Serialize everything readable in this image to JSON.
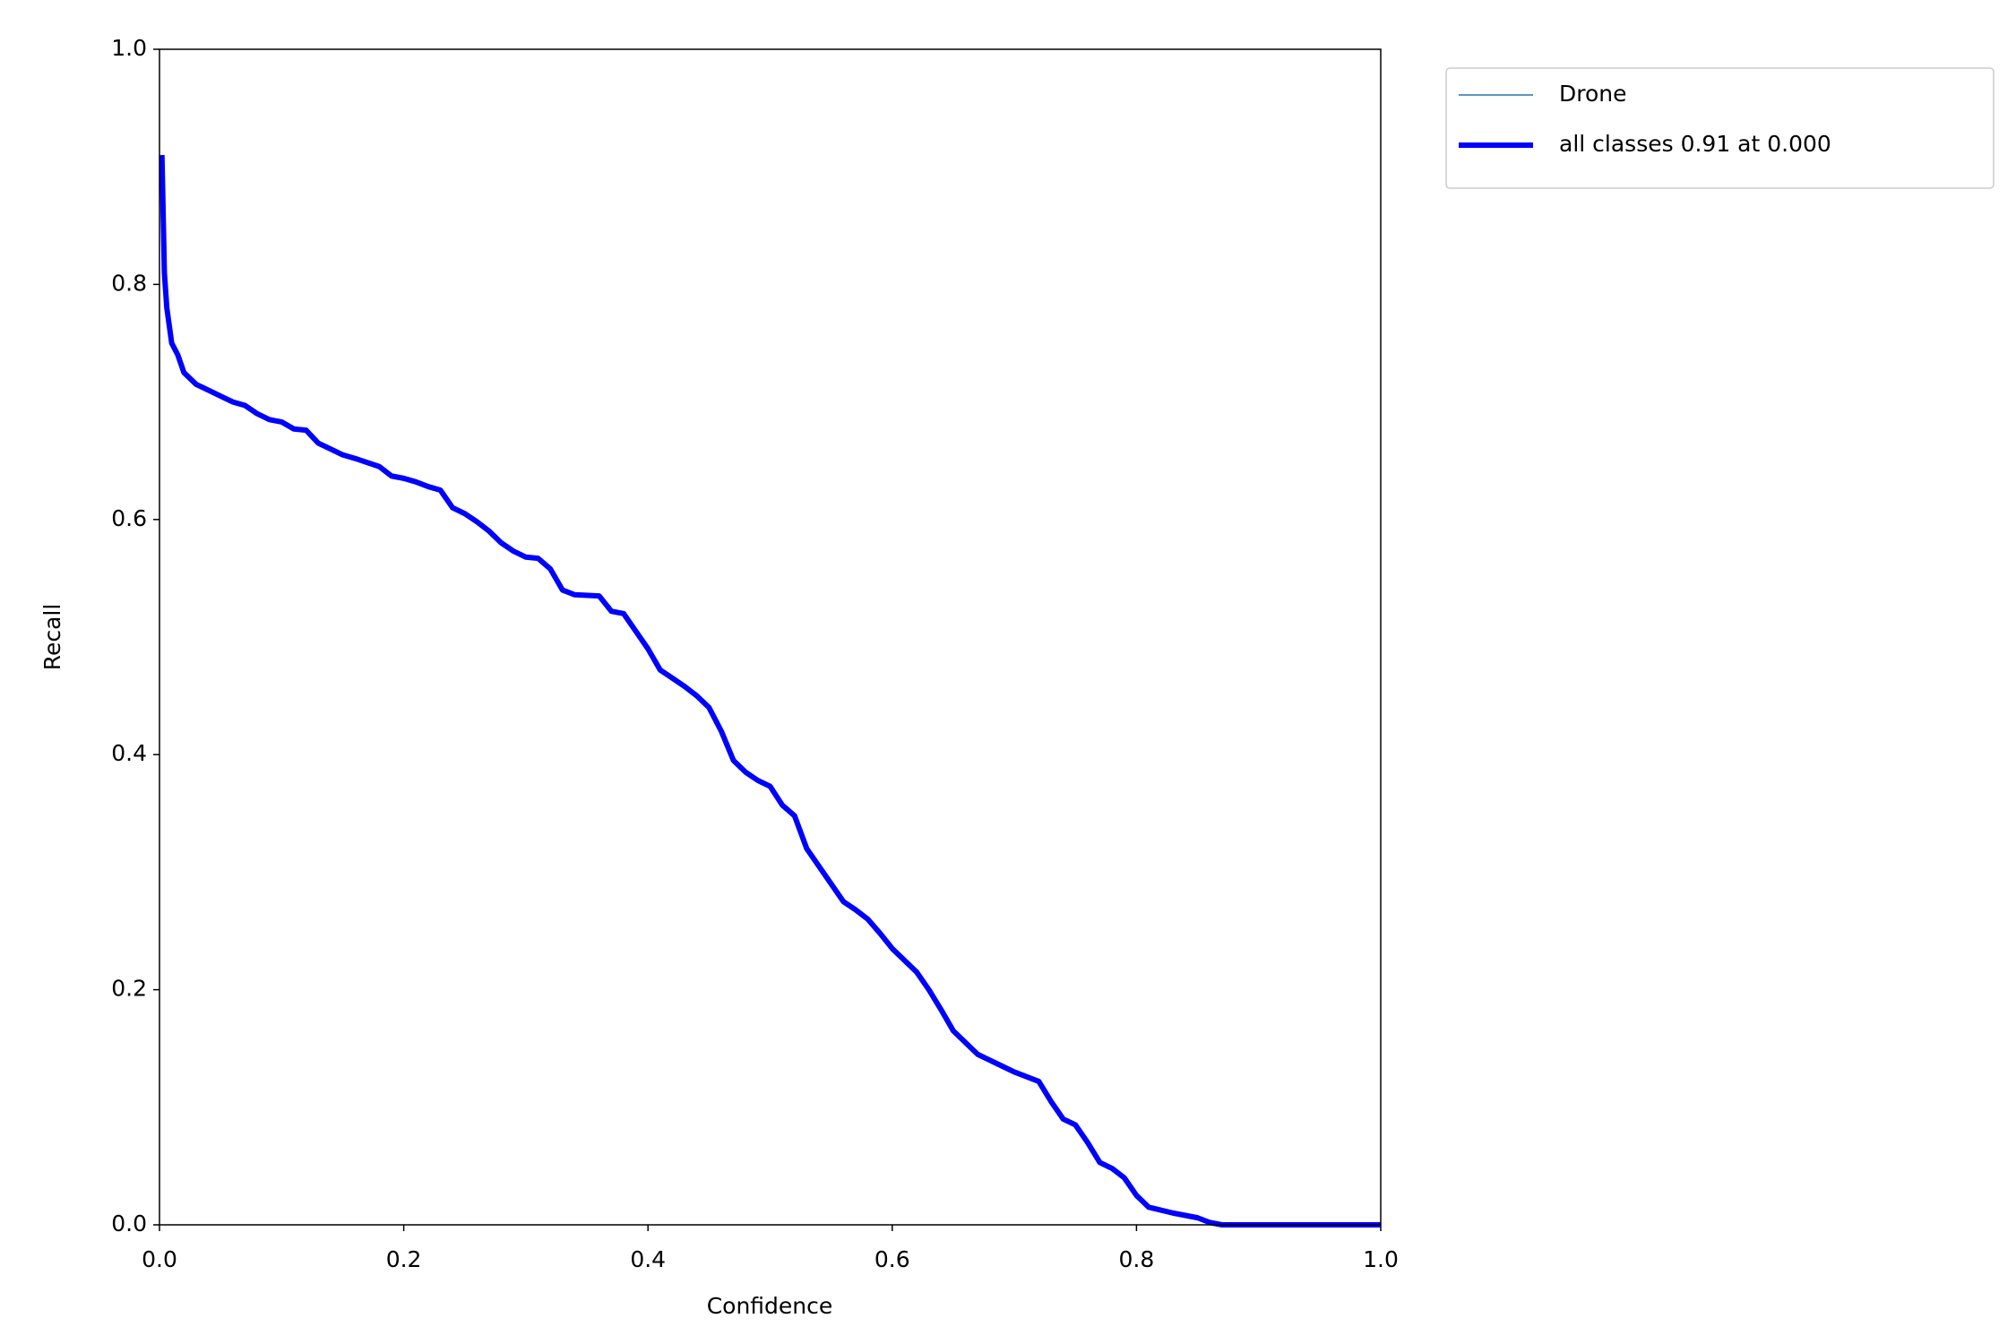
{
  "chart_data": {
    "type": "line",
    "xlabel": "Confidence",
    "ylabel": "Recall",
    "x": [
      0.002,
      0.004,
      0.006,
      0.01,
      0.015,
      0.02,
      0.03,
      0.04,
      0.05,
      0.06,
      0.07,
      0.08,
      0.09,
      0.1,
      0.11,
      0.12,
      0.13,
      0.14,
      0.15,
      0.16,
      0.18,
      0.19,
      0.2,
      0.21,
      0.22,
      0.23,
      0.24,
      0.25,
      0.26,
      0.27,
      0.28,
      0.29,
      0.3,
      0.31,
      0.32,
      0.33,
      0.34,
      0.36,
      0.37,
      0.38,
      0.39,
      0.4,
      0.41,
      0.42,
      0.43,
      0.44,
      0.45,
      0.46,
      0.47,
      0.48,
      0.49,
      0.5,
      0.51,
      0.52,
      0.53,
      0.54,
      0.55,
      0.56,
      0.57,
      0.58,
      0.59,
      0.6,
      0.61,
      0.62,
      0.63,
      0.64,
      0.65,
      0.66,
      0.67,
      0.68,
      0.69,
      0.7,
      0.71,
      0.72,
      0.73,
      0.74,
      0.75,
      0.76,
      0.77,
      0.78,
      0.79,
      0.8,
      0.81,
      0.83,
      0.85,
      0.86,
      0.87,
      1.0
    ],
    "series": [
      {
        "name": "Drone",
        "color": "#1f77b4",
        "width": 1.5,
        "values": [
          0.91,
          0.81,
          0.78,
          0.75,
          0.74,
          0.725,
          0.715,
          0.71,
          0.705,
          0.7,
          0.697,
          0.69,
          0.685,
          0.683,
          0.677,
          0.676,
          0.665,
          0.66,
          0.655,
          0.652,
          0.645,
          0.637,
          0.635,
          0.632,
          0.628,
          0.625,
          0.61,
          0.605,
          0.598,
          0.59,
          0.58,
          0.573,
          0.568,
          0.567,
          0.558,
          0.54,
          0.536,
          0.535,
          0.522,
          0.52,
          0.505,
          0.49,
          0.472,
          0.465,
          0.458,
          0.45,
          0.44,
          0.42,
          0.395,
          0.385,
          0.378,
          0.373,
          0.357,
          0.348,
          0.32,
          0.305,
          0.29,
          0.275,
          0.268,
          0.26,
          0.248,
          0.235,
          0.225,
          0.215,
          0.2,
          0.183,
          0.165,
          0.155,
          0.145,
          0.14,
          0.135,
          0.13,
          0.126,
          0.122,
          0.105,
          0.09,
          0.085,
          0.07,
          0.053,
          0.048,
          0.04,
          0.025,
          0.015,
          0.01,
          0.006,
          0.002,
          0,
          0
        ]
      },
      {
        "name": "all classes 0.91 at 0.000",
        "color": "#0000ff",
        "width": 6,
        "values": [
          0.91,
          0.81,
          0.78,
          0.75,
          0.74,
          0.725,
          0.715,
          0.71,
          0.705,
          0.7,
          0.697,
          0.69,
          0.685,
          0.683,
          0.677,
          0.676,
          0.665,
          0.66,
          0.655,
          0.652,
          0.645,
          0.637,
          0.635,
          0.632,
          0.628,
          0.625,
          0.61,
          0.605,
          0.598,
          0.59,
          0.58,
          0.573,
          0.568,
          0.567,
          0.558,
          0.54,
          0.536,
          0.535,
          0.522,
          0.52,
          0.505,
          0.49,
          0.472,
          0.465,
          0.458,
          0.45,
          0.44,
          0.42,
          0.395,
          0.385,
          0.378,
          0.373,
          0.357,
          0.348,
          0.32,
          0.305,
          0.29,
          0.275,
          0.268,
          0.26,
          0.248,
          0.235,
          0.225,
          0.215,
          0.2,
          0.183,
          0.165,
          0.155,
          0.145,
          0.14,
          0.135,
          0.13,
          0.126,
          0.122,
          0.105,
          0.09,
          0.085,
          0.07,
          0.053,
          0.048,
          0.04,
          0.025,
          0.015,
          0.01,
          0.006,
          0.002,
          0,
          0
        ]
      }
    ],
    "xlim": [
      0,
      1
    ],
    "ylim": [
      0,
      1
    ],
    "xticks": [
      {
        "value": 0,
        "label": "0.0"
      },
      0.2,
      0.4,
      0.6,
      0.8,
      {
        "value": 1,
        "label": "1.0"
      }
    ],
    "yticks": [
      {
        "value": 0,
        "label": "0.0"
      },
      0.2,
      0.4,
      0.6,
      0.8,
      {
        "value": 1,
        "label": "1.0"
      }
    ],
    "grid": false,
    "legend": "outside upper right"
  }
}
